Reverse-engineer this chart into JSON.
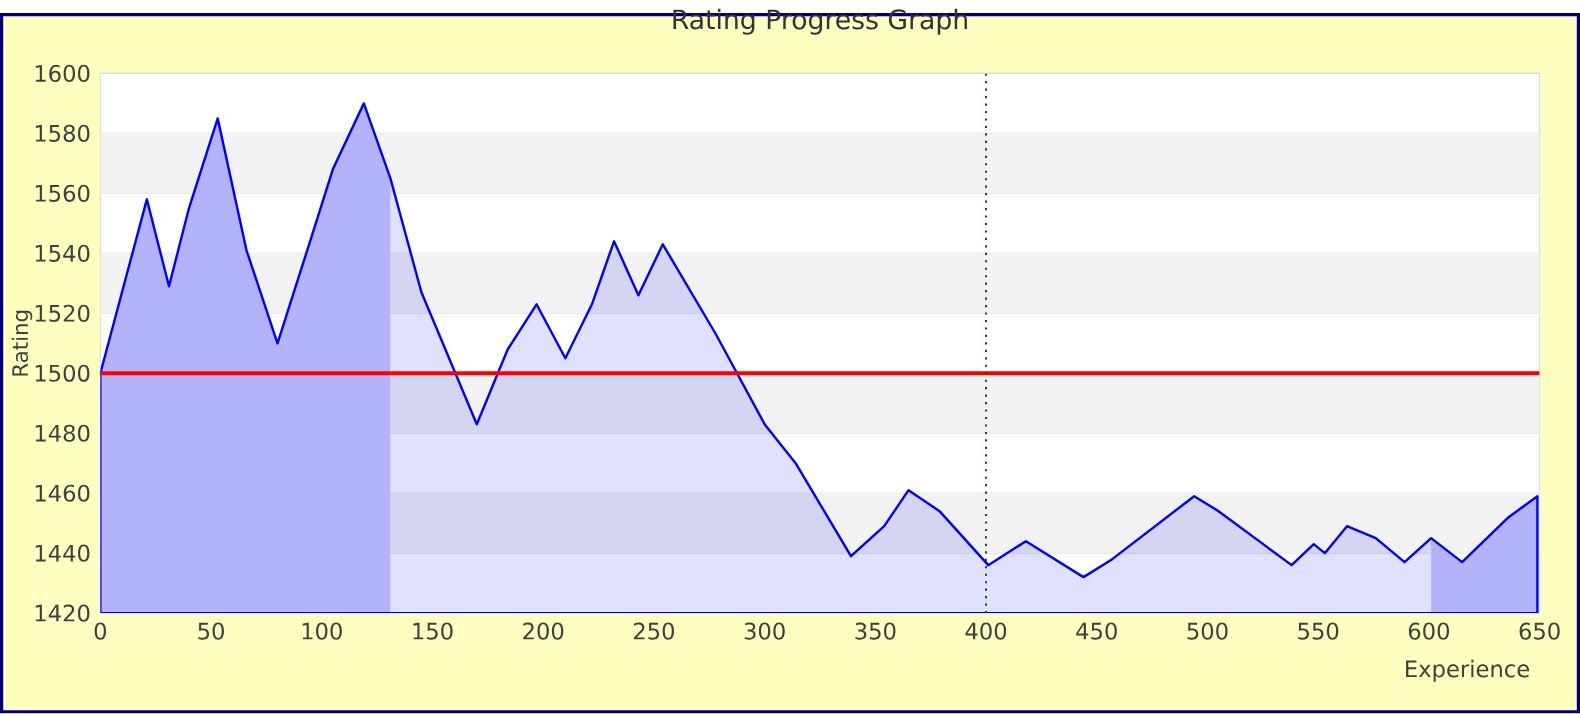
{
  "chart_data": {
    "type": "area",
    "title": "Rating Progress Graph",
    "xlabel": "Experience",
    "ylabel": "Rating",
    "xlim": [
      0,
      650
    ],
    "ylim": [
      1420,
      1600
    ],
    "xticks": [
      0,
      50,
      100,
      150,
      200,
      250,
      300,
      350,
      400,
      450,
      500,
      550,
      600,
      650
    ],
    "yticks": [
      1420,
      1440,
      1460,
      1480,
      1500,
      1520,
      1540,
      1560,
      1580,
      1600
    ],
    "grid": "y",
    "series": [
      {
        "color": "#0000ff",
        "x": [
          0,
          21,
          31,
          40,
          53,
          66,
          80,
          93,
          105,
          119,
          131,
          145,
          170,
          184,
          197,
          210,
          222,
          232,
          243,
          254,
          278,
          300,
          314,
          339,
          354,
          365,
          379,
          401,
          418,
          444,
          457,
          494,
          505,
          527,
          538,
          548,
          553,
          563,
          576,
          589,
          601,
          615,
          636,
          649
        ],
        "values": [
          1500,
          1558,
          1529,
          1555,
          1585,
          1541,
          1510,
          1540,
          1568,
          1590,
          1565,
          1527,
          1483,
          1508,
          1523,
          1505,
          1523,
          1544,
          1526,
          1543,
          1513,
          1483,
          1470,
          1439,
          1449,
          1461,
          1454,
          1436,
          1444,
          1432,
          1438,
          1459,
          1454,
          1442,
          1436,
          1443,
          1440,
          1449,
          1445,
          1437,
          1445,
          1437,
          1452,
          1459
        ]
      }
    ],
    "ref_lines": [
      {
        "axis": "y",
        "value": 1500,
        "color": "#ff0000",
        "line_style": "solid"
      },
      {
        "axis": "x",
        "value": 400,
        "color": "#1a4a1a",
        "line_style": "dotted"
      }
    ],
    "bands": [
      {
        "axis": "x",
        "from": 0,
        "to": 131,
        "color": "#ccccfa"
      },
      {
        "axis": "x",
        "from": 601,
        "to": 650,
        "color": "#ccccfa"
      }
    ]
  }
}
